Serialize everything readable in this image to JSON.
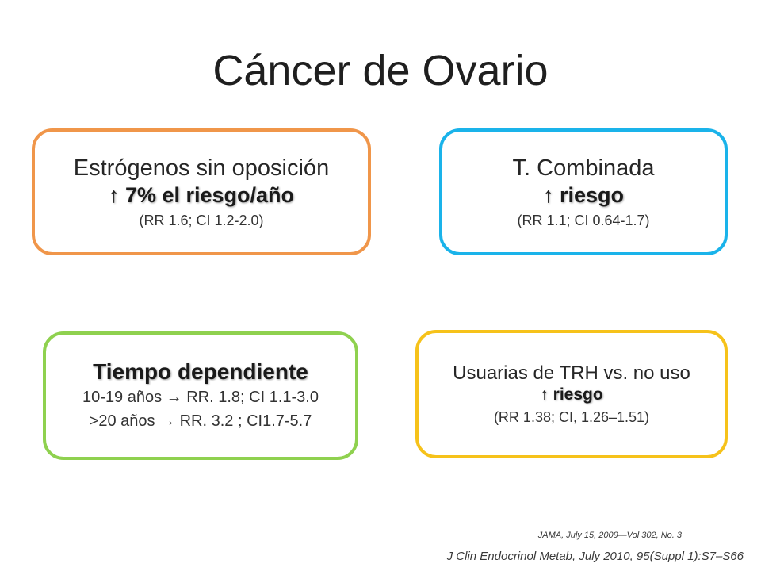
{
  "title": "Cáncer de Ovario",
  "boxes": {
    "unopposed": {
      "heading": "Estrógenos sin oposición",
      "highlight": "↑ 7% el riesgo/año",
      "detail": "(RR 1.6; CI 1.2-2.0)"
    },
    "combined": {
      "heading": "T. Combinada",
      "highlight": "↑ riesgo",
      "detail": "(RR 1.1; CI 0.64-1.7)"
    },
    "time": {
      "heading": "Tiempo dependiente",
      "line1": "10-19 años → RR. 1.8; CI 1.1-3.0",
      "line2": ">20 años  → RR. 3.2 ; CI1.7-5.7"
    },
    "users": {
      "heading": "Usuarias de TRH vs. no uso",
      "highlight": "↑ riesgo",
      "detail": "(RR 1.38; CI, 1.26–1.51)"
    }
  },
  "references": {
    "jama": "JAMA, July 15, 2009—Vol 302, No. 3",
    "jcem": "J Clin Endocrinol Metab, July 2010, 95(Suppl 1):S7–S66"
  },
  "colors": {
    "orange": "#f0964a",
    "blue": "#1ab3ea",
    "green": "#8fd14f",
    "yellow": "#f6c21a"
  }
}
